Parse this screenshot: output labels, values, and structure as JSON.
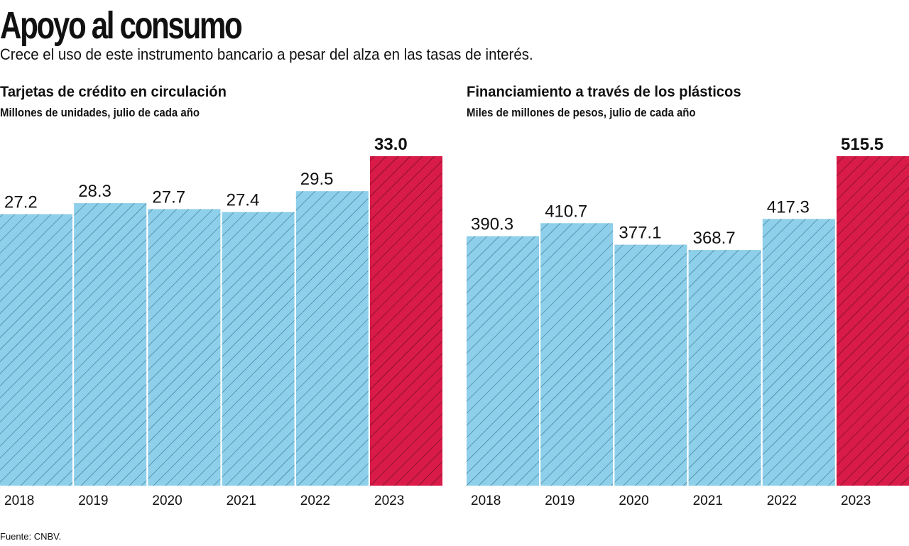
{
  "header": {
    "title": "Apoyo al consumo",
    "subtitle": "Crece el uso de este instrumento bancario a pesar del alza en las tasas de interés."
  },
  "colors": {
    "bar": "#8ecfea",
    "bar_highlight": "#d81b48",
    "hatch": "#2f6b88",
    "hatch_highlight": "#5a0a1e"
  },
  "footer": {
    "source": "Fuente: CNBV."
  },
  "chart_data": [
    {
      "type": "bar",
      "title": "Tarjetas de crédito en circulación",
      "subtitle": "Millones de unidades, julio de cada año",
      "xlabel": "",
      "ylabel": "",
      "categories": [
        "2018",
        "2019",
        "2020",
        "2021",
        "2022",
        "2023"
      ],
      "values": [
        27.2,
        28.3,
        27.7,
        27.4,
        29.5,
        33.0
      ],
      "value_labels": [
        "27.2",
        "28.3",
        "27.7",
        "27.4",
        "29.5",
        "33.0"
      ],
      "highlight_index": 5,
      "ylim": [
        0,
        33.0
      ],
      "grid": false
    },
    {
      "type": "bar",
      "title": "Financiamiento a través de los plásticos",
      "subtitle": "Miles de millones de pesos, julio de cada año",
      "xlabel": "",
      "ylabel": "",
      "categories": [
        "2018",
        "2019",
        "2020",
        "2021",
        "2022",
        "2023"
      ],
      "values": [
        390.3,
        410.7,
        377.1,
        368.7,
        417.3,
        515.5
      ],
      "value_labels": [
        "390.3",
        "410.7",
        "377.1",
        "368.7",
        "417.3",
        "515.5"
      ],
      "highlight_index": 5,
      "ylim": [
        0,
        515.5
      ],
      "grid": false
    }
  ]
}
